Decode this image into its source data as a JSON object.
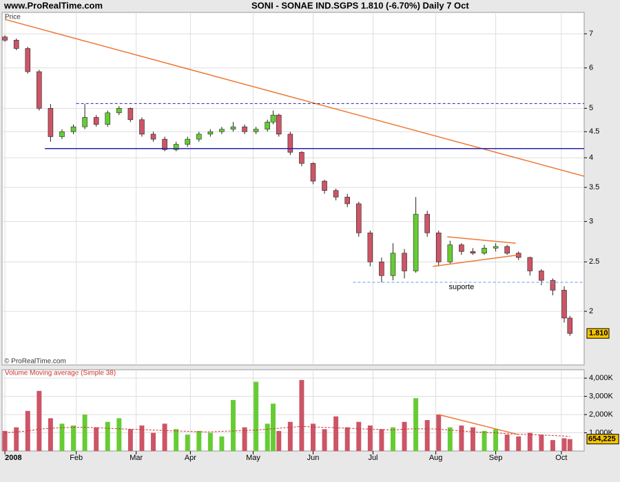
{
  "chart_data": [
    {
      "type": "candlestick",
      "site": "www.ProRealTime.com",
      "title": "SONI - SONAE IND.SGPS   1.810 (-6.70%)   Daily  7 Oct",
      "label": "Price",
      "credit": "© ProRealTime.com",
      "log_scale": true,
      "grid": true,
      "up_color": "#66cc33",
      "down_color": "#cc5566",
      "x": [
        0,
        4,
        8,
        12,
        16,
        20,
        24,
        28,
        32,
        36,
        40,
        44,
        48,
        52,
        56,
        60,
        64,
        68,
        72,
        76,
        80,
        84,
        88,
        92,
        94,
        96,
        100,
        104,
        108,
        112,
        116,
        120,
        124,
        128,
        132,
        136,
        140,
        144,
        148,
        152,
        156,
        160,
        164,
        168,
        172,
        176,
        180,
        184,
        188,
        192,
        196,
        198
      ],
      "open": [
        6.9,
        6.8,
        6.55,
        5.9,
        5.0,
        4.4,
        4.5,
        4.6,
        4.8,
        4.65,
        4.9,
        5.0,
        4.75,
        4.45,
        4.35,
        4.15,
        4.25,
        4.35,
        4.45,
        4.5,
        4.55,
        4.6,
        4.5,
        4.55,
        4.7,
        4.85,
        4.45,
        4.1,
        3.9,
        3.6,
        3.45,
        3.35,
        3.25,
        2.85,
        2.5,
        2.35,
        2.6,
        2.4,
        3.1,
        2.85,
        2.5,
        2.7,
        2.62,
        2.6,
        2.66,
        2.68,
        2.6,
        2.55,
        2.4,
        2.3,
        2.2,
        1.94
      ],
      "high": [
        6.95,
        6.85,
        6.6,
        5.95,
        5.1,
        4.55,
        4.65,
        5.1,
        4.85,
        4.95,
        5.05,
        5.02,
        4.8,
        4.5,
        4.4,
        4.3,
        4.4,
        4.5,
        4.55,
        4.6,
        4.7,
        4.65,
        4.6,
        4.75,
        4.95,
        4.88,
        4.5,
        4.12,
        3.92,
        3.62,
        3.48,
        3.4,
        3.28,
        2.88,
        2.55,
        2.72,
        2.65,
        3.35,
        3.15,
        2.88,
        2.75,
        2.72,
        2.66,
        2.7,
        2.72,
        2.7,
        2.62,
        2.56,
        2.42,
        2.32,
        2.24,
        1.96
      ],
      "low": [
        6.75,
        6.5,
        5.85,
        4.95,
        4.3,
        4.35,
        4.45,
        4.55,
        4.6,
        4.6,
        4.85,
        4.7,
        4.4,
        4.3,
        4.12,
        4.12,
        4.2,
        4.3,
        4.4,
        4.45,
        4.5,
        4.45,
        4.45,
        4.5,
        4.65,
        4.4,
        4.05,
        3.85,
        3.55,
        3.4,
        3.3,
        3.2,
        2.8,
        2.45,
        2.28,
        2.3,
        2.32,
        2.38,
        2.8,
        2.45,
        2.48,
        2.58,
        2.58,
        2.58,
        2.62,
        2.58,
        2.52,
        2.35,
        2.25,
        2.15,
        1.9,
        1.79
      ],
      "close": [
        6.8,
        6.55,
        5.9,
        5.0,
        4.4,
        4.5,
        4.6,
        4.8,
        4.65,
        4.9,
        5.0,
        4.75,
        4.45,
        4.35,
        4.15,
        4.25,
        4.35,
        4.45,
        4.5,
        4.55,
        4.6,
        4.5,
        4.55,
        4.7,
        4.85,
        4.45,
        4.1,
        3.9,
        3.6,
        3.45,
        3.35,
        3.25,
        2.85,
        2.5,
        2.35,
        2.6,
        2.4,
        3.1,
        2.85,
        2.5,
        2.7,
        2.62,
        2.6,
        2.66,
        2.68,
        2.6,
        2.55,
        2.4,
        2.3,
        2.2,
        1.94,
        1.81
      ],
      "xlim": [
        -1,
        203
      ],
      "xticks": [
        {
          "value": 0,
          "label": "2008"
        },
        {
          "value": 25,
          "label": "Feb"
        },
        {
          "value": 46,
          "label": "Mar"
        },
        {
          "value": 65,
          "label": "Apr"
        },
        {
          "value": 87,
          "label": "May"
        },
        {
          "value": 108,
          "label": "Jun"
        },
        {
          "value": 129,
          "label": "Jul"
        },
        {
          "value": 151,
          "label": "Aug"
        },
        {
          "value": 172,
          "label": "Sep"
        },
        {
          "value": 195,
          "label": "Oct"
        }
      ],
      "ylim": [
        1.57,
        7.71
      ],
      "yticks": [
        2,
        2.5,
        3,
        3.5,
        4,
        4.5,
        5,
        6,
        7
      ],
      "last_price": {
        "value": 1.81,
        "label": "1.810"
      },
      "annotations": [
        {
          "x": [
            0,
            203
          ],
          "y": [
            7.47,
            3.68
          ],
          "color": "#ee7733",
          "dash": false
        },
        {
          "x": [
            14,
            203
          ],
          "y": [
            4.17,
            4.17
          ],
          "color": "#2222aa",
          "dash": false
        },
        {
          "x": [
            25,
            203
          ],
          "y": [
            5.11,
            5.11
          ],
          "color": "#2222aa",
          "dash": true
        },
        {
          "x": [
            122,
            203
          ],
          "y": [
            2.28,
            2.28
          ],
          "color": "#6699dd",
          "dash": true
        },
        {
          "x": [
            155,
            179
          ],
          "y": [
            2.8,
            2.72
          ],
          "color": "#ee7733",
          "dash": false
        },
        {
          "x": [
            150,
            180
          ],
          "y": [
            2.45,
            2.58
          ],
          "color": "#ee7733",
          "dash": false
        }
      ],
      "support_label": "suporte"
    },
    {
      "type": "bar",
      "title": "Volume Moving average (Simple 38)",
      "grid": true,
      "values": [
        1100000,
        1300000,
        2200000,
        3300000,
        1800000,
        1500000,
        1400000,
        2000000,
        1300000,
        1600000,
        1800000,
        1200000,
        1400000,
        1000000,
        1500000,
        1200000,
        900000,
        1100000,
        1000000,
        800000,
        2800000,
        1300000,
        3800000,
        1500000,
        2600000,
        1100000,
        1600000,
        3900000,
        1500000,
        1200000,
        1900000,
        1300000,
        1600000,
        1400000,
        1200000,
        1300000,
        1600000,
        2900000,
        1700000,
        2000000,
        1300000,
        1400000,
        1300000,
        1100000,
        1200000,
        900000,
        800000,
        1000000,
        900000,
        600000,
        700000,
        654225
      ],
      "ma": {
        "color": "#cc3333",
        "values": [
          1000000,
          1050000,
          1100000,
          1200000,
          1250000,
          1280000,
          1300000,
          1300000,
          1280000,
          1250000,
          1220000,
          1200000,
          1180000,
          1150000,
          1120000,
          1100000,
          1080000,
          1060000,
          1050000,
          1080000,
          1100000,
          1120000,
          1150000,
          1200000,
          1220000,
          1250000,
          1300000,
          1350000,
          1320000,
          1300000,
          1280000,
          1250000,
          1220000,
          1200000,
          1180000,
          1150000,
          1200000,
          1220000,
          1220000,
          1200000,
          1150000,
          1100000,
          1050000,
          1020000,
          1000000,
          950000,
          920000,
          900000,
          880000,
          850000,
          820000,
          800000
        ]
      },
      "ylim": [
        0,
        4460000
      ],
      "yticks": [
        {
          "value": 1000000,
          "label": "1,000K"
        },
        {
          "value": 2000000,
          "label": "2,000K"
        },
        {
          "value": 3000000,
          "label": "3,000K"
        },
        {
          "value": 4000000,
          "label": "4,000K"
        }
      ],
      "last_volume": {
        "value": 654225,
        "label": "654,225"
      },
      "annotations": [
        {
          "x": [
            152,
            180
          ],
          "y": [
            2000000,
            900000
          ],
          "color": "#ee7733",
          "dash": false
        }
      ]
    }
  ]
}
